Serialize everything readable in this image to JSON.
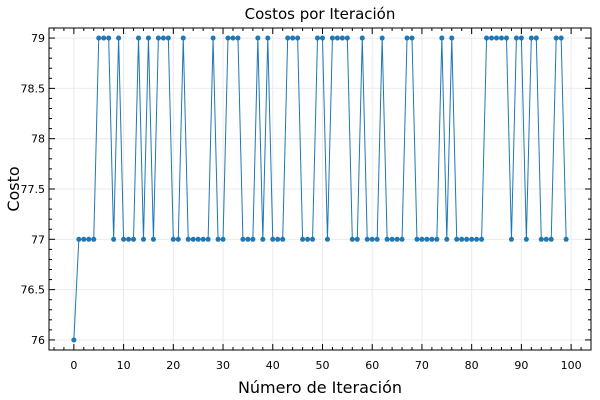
{
  "chart_data": {
    "type": "line",
    "title": "Costos por Iteración",
    "xlabel": "Número de Iteración",
    "ylabel": "Costo",
    "xlim": [
      -5,
      104
    ],
    "ylim": [
      75.9,
      79.1
    ],
    "xticks": [
      0,
      10,
      20,
      30,
      40,
      50,
      60,
      70,
      80,
      90,
      100
    ],
    "yticks": [
      76,
      76.5,
      77,
      77.5,
      78,
      78.5,
      79
    ],
    "ytick_labels": [
      "76",
      "76.5",
      "77",
      "77.5",
      "78",
      "78.5",
      "79"
    ],
    "grid": true,
    "legend": "none",
    "colors": {
      "line": "#1f77b4",
      "marker": "#1f77b4",
      "grid": "#ebebeb",
      "axis": "#000000"
    },
    "series": [
      {
        "x": [
          0,
          1,
          2,
          3,
          4,
          5,
          6,
          7,
          8,
          9,
          10,
          11,
          12,
          13,
          14,
          15,
          16,
          17,
          18,
          19,
          20,
          21,
          22,
          23,
          24,
          25,
          26,
          27,
          28,
          29,
          30,
          31,
          32,
          33,
          34,
          35,
          36,
          37,
          38,
          39,
          40,
          41,
          42,
          43,
          44,
          45,
          46,
          47,
          48,
          49,
          50,
          51,
          52,
          53,
          54,
          55,
          56,
          57,
          58,
          59,
          60,
          61,
          62,
          63,
          64,
          65,
          66,
          67,
          68,
          69,
          70,
          71,
          72,
          73,
          74,
          75,
          76,
          77,
          78,
          79,
          80,
          81,
          82,
          83,
          84,
          85,
          86,
          87,
          88,
          89,
          90,
          91,
          92,
          93,
          94,
          95,
          96,
          97,
          98,
          99
        ],
        "values": [
          76,
          77,
          77,
          77,
          77,
          79,
          79,
          79,
          77,
          79,
          77,
          77,
          77,
          79,
          77,
          79,
          77,
          79,
          79,
          79,
          77,
          77,
          79,
          77,
          77,
          77,
          77,
          77,
          79,
          77,
          77,
          79,
          79,
          79,
          77,
          77,
          77,
          79,
          77,
          79,
          77,
          77,
          77,
          79,
          79,
          79,
          77,
          77,
          77,
          79,
          79,
          77,
          79,
          79,
          79,
          79,
          77,
          77,
          79,
          77,
          77,
          77,
          79,
          77,
          77,
          77,
          77,
          79,
          79,
          77,
          77,
          77,
          77,
          77,
          79,
          77,
          79,
          77,
          77,
          77,
          77,
          77,
          77,
          79,
          79,
          79,
          79,
          79,
          77,
          79,
          79,
          77,
          79,
          79,
          77,
          77,
          77,
          79,
          79,
          77
        ]
      }
    ]
  }
}
